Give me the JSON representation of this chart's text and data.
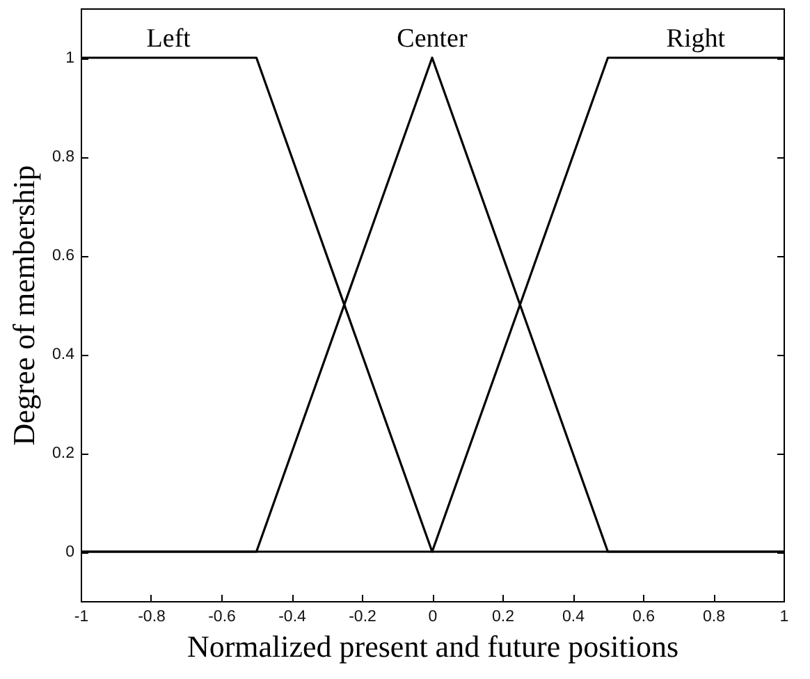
{
  "chart_data": {
    "type": "line",
    "xlabel": "Normalized present and future positions",
    "ylabel": "Degree of membership",
    "xlim": [
      -1,
      1
    ],
    "ylim": [
      -0.1,
      1.1
    ],
    "xticks": [
      -1,
      -0.8,
      -0.6,
      -0.4,
      -0.2,
      0,
      0.2,
      0.4,
      0.6,
      0.8,
      1
    ],
    "yticks": [
      0,
      0.2,
      0.4,
      0.6,
      0.8,
      1
    ],
    "grid": false,
    "legend": false,
    "marker": "none",
    "line_style": "solid",
    "series": [
      {
        "name": "Left",
        "color": "#000000",
        "x": [
          -1,
          -0.5,
          0,
          1
        ],
        "values": [
          1,
          1,
          0,
          0
        ]
      },
      {
        "name": "Center",
        "color": "#000000",
        "x": [
          -1,
          -0.5,
          0,
          0.5,
          1
        ],
        "values": [
          0,
          0,
          1,
          0,
          0
        ]
      },
      {
        "name": "Right",
        "color": "#000000",
        "x": [
          -1,
          0,
          0.5,
          1
        ],
        "values": [
          0,
          0,
          1,
          1
        ]
      }
    ]
  }
}
